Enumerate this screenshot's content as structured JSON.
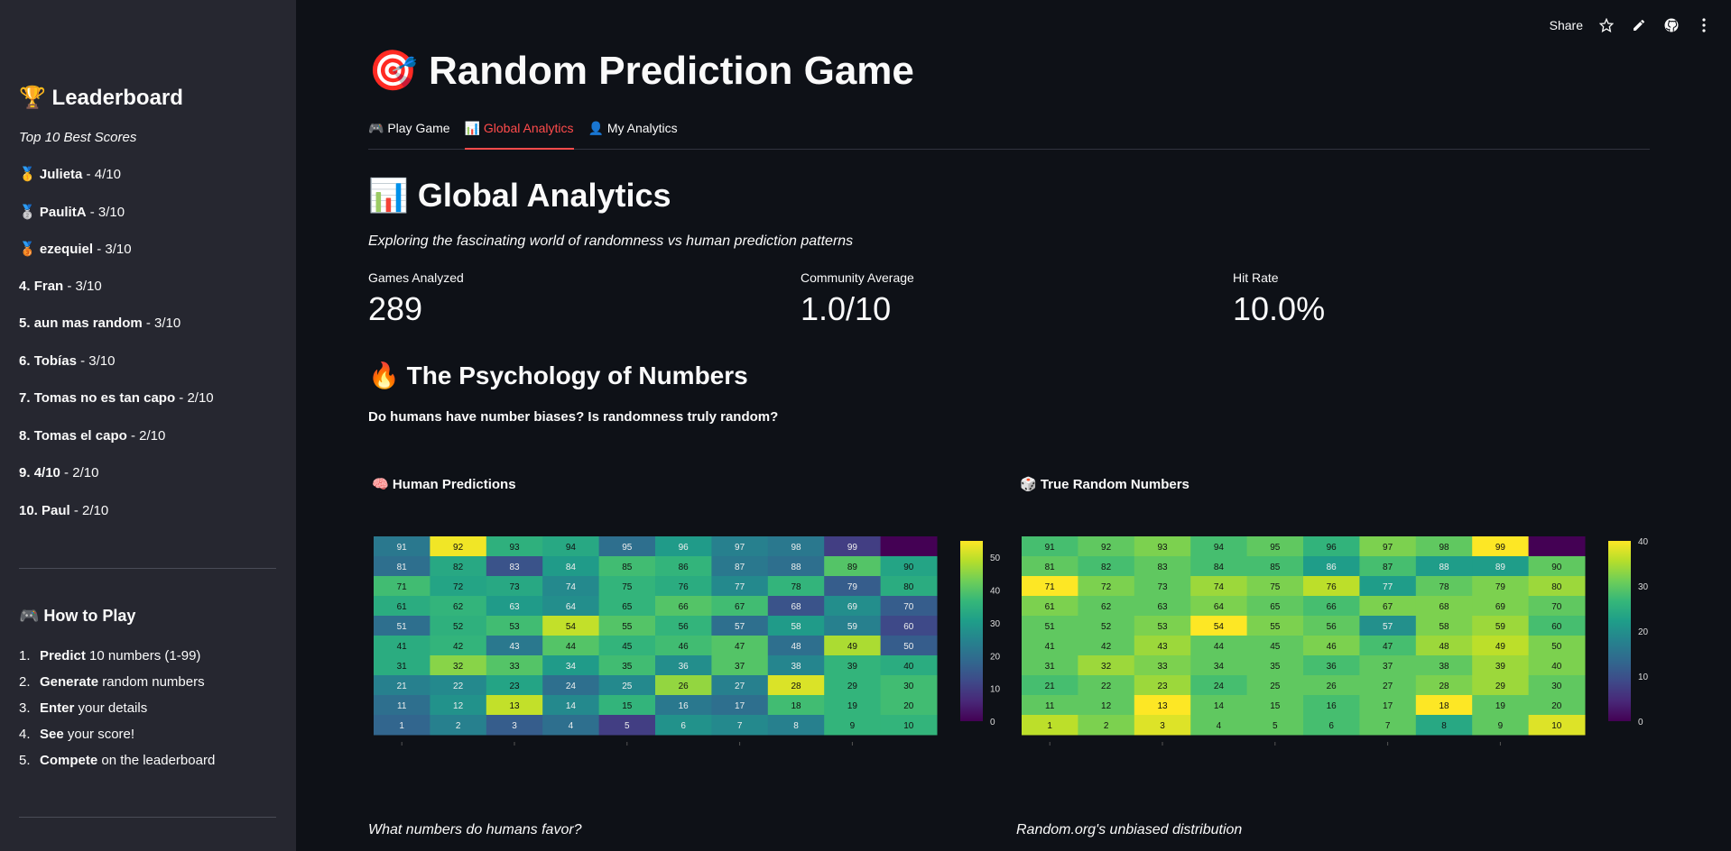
{
  "sidebar": {
    "title": "🏆 Leaderboard",
    "subtitle": "Top 10 Best Scores",
    "leaderboard": [
      {
        "rank": "🥇",
        "name": "Julieta",
        "score": " - 4/10"
      },
      {
        "rank": "🥈",
        "name": "PaulitA",
        "score": " - 3/10"
      },
      {
        "rank": "🥉",
        "name": "ezequiel",
        "score": " - 3/10"
      },
      {
        "rank": "4.",
        "name": "Fran",
        "score": " - 3/10"
      },
      {
        "rank": "5.",
        "name": "aun mas random",
        "score": " - 3/10"
      },
      {
        "rank": "6.",
        "name": "Tobías",
        "score": " - 3/10"
      },
      {
        "rank": "7.",
        "name": "Tomas no es tan capo",
        "score": " - 2/10"
      },
      {
        "rank": "8.",
        "name": "Tomas el capo",
        "score": " - 2/10"
      },
      {
        "rank": "9.",
        "name": "4/10",
        "score": " - 2/10"
      },
      {
        "rank": "10.",
        "name": "Paul",
        "score": " - 2/10"
      }
    ],
    "how_to_title": "🎮 How to Play",
    "how_to": [
      {
        "num": "1.",
        "bold": "Predict",
        "rest": " 10 numbers (1-99)"
      },
      {
        "num": "2.",
        "bold": "Generate",
        "rest": " random numbers"
      },
      {
        "num": "3.",
        "bold": "Enter",
        "rest": " your details"
      },
      {
        "num": "4.",
        "bold": "See",
        "rest": " your score!"
      },
      {
        "num": "5.",
        "bold": "Compete",
        "rest": " on the leaderboard"
      }
    ]
  },
  "toolbar": {
    "share_label": "Share"
  },
  "main": {
    "title": "🎯 Random Prediction Game",
    "tabs": [
      {
        "label": "🎮 Play Game",
        "active": false
      },
      {
        "label": "📊 Global Analytics",
        "active": true
      },
      {
        "label": "👤 My Analytics",
        "active": false
      }
    ],
    "section_title": "📊 Global Analytics",
    "section_subtitle": "Exploring the fascinating world of randomness vs human prediction patterns",
    "metrics": [
      {
        "label": "Games Analyzed",
        "value": "289"
      },
      {
        "label": "Community Average",
        "value": "1.0/10"
      },
      {
        "label": "Hit Rate",
        "value": "10.0%"
      }
    ],
    "psy_title": "🔥 The Psychology of Numbers",
    "psy_question": "Do humans have number biases? Is randomness truly random?",
    "human_title": "🧠 Human Predictions",
    "random_title": "🎲 True Random Numbers",
    "human_caption": "What numbers do humans favor?",
    "random_caption": "Random.org's unbiased distribution"
  },
  "chart_data": [
    {
      "type": "heatmap",
      "title": "🧠 Human Predictions",
      "rows_top_to_bottom": [
        [
          91,
          92,
          93,
          94,
          95,
          96,
          97,
          98,
          99,
          null
        ],
        [
          81,
          82,
          83,
          84,
          85,
          86,
          87,
          88,
          89,
          90
        ],
        [
          71,
          72,
          73,
          74,
          75,
          76,
          77,
          78,
          79,
          80
        ],
        [
          61,
          62,
          63,
          64,
          65,
          66,
          67,
          68,
          69,
          70
        ],
        [
          51,
          52,
          53,
          54,
          55,
          56,
          57,
          58,
          59,
          60
        ],
        [
          41,
          42,
          43,
          44,
          45,
          46,
          47,
          48,
          49,
          50
        ],
        [
          31,
          32,
          33,
          34,
          35,
          36,
          37,
          38,
          39,
          40
        ],
        [
          21,
          22,
          23,
          24,
          25,
          26,
          27,
          28,
          29,
          30
        ],
        [
          11,
          12,
          13,
          14,
          15,
          16,
          17,
          18,
          19,
          20
        ],
        [
          1,
          2,
          3,
          4,
          5,
          6,
          7,
          8,
          9,
          10
        ]
      ],
      "counts_top_to_bottom": [
        [
          22,
          54,
          35,
          33,
          20,
          30,
          24,
          22,
          10,
          0
        ],
        [
          20,
          33,
          14,
          30,
          38,
          36,
          22,
          20,
          40,
          32
        ],
        [
          38,
          32,
          33,
          26,
          36,
          34,
          26,
          36,
          16,
          34
        ],
        [
          34,
          36,
          30,
          27,
          36,
          40,
          38,
          14,
          27,
          16
        ],
        [
          20,
          35,
          38,
          50,
          40,
          36,
          20,
          30,
          24,
          12
        ],
        [
          34,
          36,
          22,
          40,
          36,
          38,
          40,
          20,
          48,
          16
        ],
        [
          34,
          45,
          40,
          30,
          38,
          27,
          40,
          25,
          36,
          34
        ],
        [
          24,
          26,
          32,
          20,
          26,
          46,
          24,
          52,
          36,
          38
        ],
        [
          20,
          28,
          50,
          26,
          36,
          22,
          20,
          38,
          36,
          38
        ],
        [
          18,
          24,
          16,
          20,
          10,
          28,
          26,
          24,
          36,
          36
        ]
      ],
      "colorbar": {
        "min": 0,
        "max": 55,
        "ticks": [
          "0",
          "10",
          "20",
          "30",
          "40",
          "50"
        ]
      }
    },
    {
      "type": "heatmap",
      "title": "🎲 True Random Numbers",
      "rows_top_to_bottom": [
        [
          91,
          92,
          93,
          94,
          95,
          96,
          97,
          98,
          99,
          null
        ],
        [
          81,
          82,
          83,
          84,
          85,
          86,
          87,
          88,
          89,
          90
        ],
        [
          71,
          72,
          73,
          74,
          75,
          76,
          77,
          78,
          79,
          80
        ],
        [
          61,
          62,
          63,
          64,
          65,
          66,
          67,
          68,
          69,
          70
        ],
        [
          51,
          52,
          53,
          54,
          55,
          56,
          57,
          58,
          59,
          60
        ],
        [
          41,
          42,
          43,
          44,
          45,
          46,
          47,
          48,
          49,
          50
        ],
        [
          31,
          32,
          33,
          34,
          35,
          36,
          37,
          38,
          39,
          40
        ],
        [
          21,
          22,
          23,
          24,
          25,
          26,
          27,
          28,
          29,
          30
        ],
        [
          11,
          12,
          13,
          14,
          15,
          16,
          17,
          18,
          19,
          20
        ],
        [
          1,
          2,
          3,
          4,
          5,
          6,
          7,
          8,
          9,
          10
        ]
      ],
      "counts_top_to_bottom": [
        [
          28,
          30,
          32,
          28,
          30,
          26,
          32,
          30,
          40,
          0
        ],
        [
          30,
          28,
          30,
          28,
          28,
          22,
          28,
          22,
          22,
          30
        ],
        [
          40,
          32,
          30,
          34,
          32,
          36,
          22,
          30,
          32,
          34
        ],
        [
          32,
          30,
          30,
          32,
          30,
          28,
          32,
          32,
          32,
          30
        ],
        [
          30,
          30,
          32,
          40,
          32,
          30,
          20,
          32,
          34,
          28
        ],
        [
          30,
          30,
          34,
          30,
          30,
          32,
          28,
          34,
          36,
          32
        ],
        [
          30,
          34,
          32,
          30,
          30,
          28,
          30,
          30,
          34,
          32
        ],
        [
          28,
          30,
          34,
          28,
          30,
          30,
          30,
          32,
          34,
          30
        ],
        [
          30,
          30,
          40,
          30,
          30,
          28,
          30,
          40,
          30,
          30
        ],
        [
          36,
          32,
          38,
          30,
          30,
          28,
          30,
          24,
          30,
          38
        ]
      ],
      "colorbar": {
        "min": 0,
        "max": 40,
        "ticks": [
          "0",
          "10",
          "20",
          "30",
          "40"
        ]
      }
    }
  ]
}
